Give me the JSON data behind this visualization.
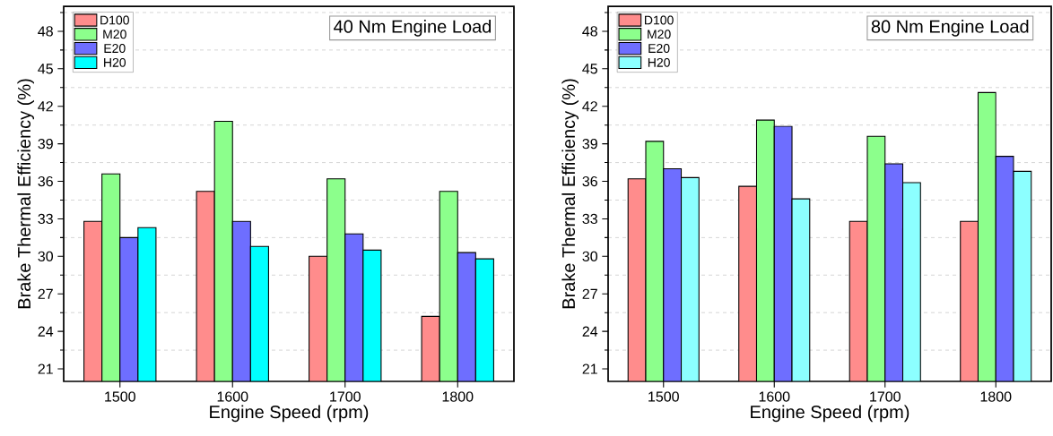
{
  "chart_data": [
    {
      "type": "bar",
      "title": "40 Nm Engine Load",
      "xlabel": "Engine Speed (rpm)",
      "ylabel": "Brake Thermal Efficiency (%)",
      "categories": [
        "1500",
        "1600",
        "1700",
        "1800"
      ],
      "series": [
        {
          "name": "D100",
          "color": "#ff8c8c",
          "values": [
            32.8,
            35.2,
            30.0,
            25.2
          ]
        },
        {
          "name": "M20",
          "color": "#8cff8c",
          "values": [
            36.6,
            40.8,
            36.2,
            35.2
          ]
        },
        {
          "name": "E20",
          "color": "#6e6eff",
          "values": [
            31.5,
            32.8,
            31.8,
            30.3
          ]
        },
        {
          "name": "H20",
          "color": "#00ffff",
          "values": [
            32.3,
            30.8,
            30.5,
            29.8
          ]
        }
      ],
      "ylim": [
        20,
        50
      ],
      "yticks": [
        21,
        {
          "value": 22.5,
          "label": null
        },
        24,
        {
          "value": 25.5,
          "label": null
        },
        27,
        {
          "value": 28.5,
          "label": null
        },
        30,
        {
          "value": 31.5,
          "label": null
        },
        33,
        {
          "value": 34.5,
          "label": null
        },
        36,
        {
          "value": 37.5,
          "label": null
        },
        39,
        {
          "value": 40.5,
          "label": null
        },
        42,
        {
          "value": 43.5,
          "label": null
        },
        45,
        {
          "value": 46.5,
          "label": null
        },
        48,
        {
          "value": 49.5,
          "label": null
        }
      ],
      "grid": true,
      "legend": "top left"
    },
    {
      "type": "bar",
      "title": "80 Nm Engine Load",
      "xlabel": "Engine Speed (rpm)",
      "ylabel": "Brake Thermal Efficiency (%)",
      "categories": [
        "1500",
        "1600",
        "1700",
        "1800"
      ],
      "series": [
        {
          "name": "D100",
          "color": "#ff8c8c",
          "values": [
            36.2,
            35.6,
            32.8,
            32.8
          ]
        },
        {
          "name": "M20",
          "color": "#8cff8c",
          "values": [
            39.2,
            40.9,
            39.6,
            43.1
          ]
        },
        {
          "name": "E20",
          "color": "#6e6eff",
          "values": [
            37.0,
            40.4,
            37.4,
            38.0
          ]
        },
        {
          "name": "H20",
          "color": "#8cffff",
          "values": [
            36.3,
            34.6,
            35.9,
            36.8
          ]
        }
      ],
      "ylim": [
        20,
        50
      ],
      "yticks": [
        21,
        {
          "value": 22.5,
          "label": null
        },
        24,
        {
          "value": 25.5,
          "label": null
        },
        27,
        {
          "value": 28.5,
          "label": null
        },
        30,
        {
          "value": 31.5,
          "label": null
        },
        33,
        {
          "value": 34.5,
          "label": null
        },
        36,
        {
          "value": 37.5,
          "label": null
        },
        39,
        {
          "value": 40.5,
          "label": null
        },
        42,
        {
          "value": 43.5,
          "label": null
        },
        45,
        {
          "value": 46.5,
          "label": null
        },
        48,
        {
          "value": 49.5,
          "label": null
        }
      ],
      "grid": true,
      "legend": "top left"
    }
  ]
}
